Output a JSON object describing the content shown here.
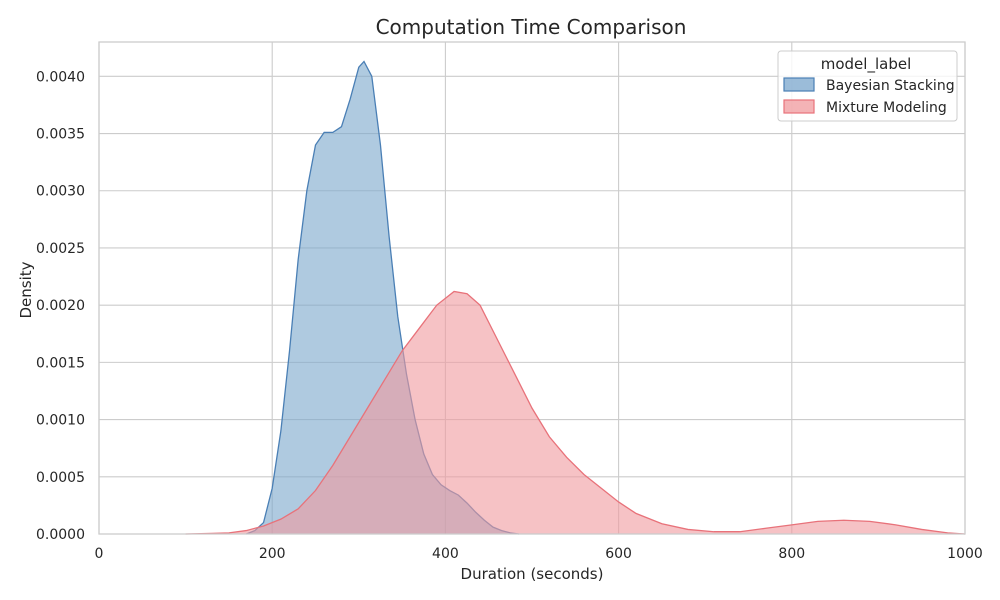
{
  "chart_data": {
    "type": "area",
    "title": "Computation Time Comparison",
    "xlabel": "Duration (seconds)",
    "ylabel": "Density",
    "xlim": [
      0,
      1000
    ],
    "ylim": [
      0,
      0.0043
    ],
    "x_ticks": [
      0,
      200,
      400,
      600,
      800,
      1000
    ],
    "x_tick_labels": [
      "0",
      "200",
      "400",
      "600",
      "800",
      "1000"
    ],
    "y_ticks": [
      0,
      0.0005,
      0.001,
      0.0015,
      0.002,
      0.0025,
      0.003,
      0.0035,
      0.004
    ],
    "y_tick_labels": [
      "0.0000",
      "0.0005",
      "0.0010",
      "0.0015",
      "0.0020",
      "0.0025",
      "0.0030",
      "0.0035",
      "0.0040"
    ],
    "grid": true,
    "legend": {
      "title": "model_label",
      "placement": "top-right"
    },
    "series": [
      {
        "name": "Bayesian Stacking",
        "color": "#4a7fb5",
        "fill": "#7aa6cc",
        "points": [
          [
            170,
            0.0
          ],
          [
            180,
            3e-05
          ],
          [
            190,
            0.0001
          ],
          [
            200,
            0.0004
          ],
          [
            210,
            0.0009
          ],
          [
            220,
            0.0016
          ],
          [
            230,
            0.0024
          ],
          [
            240,
            0.003
          ],
          [
            250,
            0.0034
          ],
          [
            260,
            0.00351
          ],
          [
            270,
            0.00351
          ],
          [
            280,
            0.00356
          ],
          [
            290,
            0.0038
          ],
          [
            300,
            0.00408
          ],
          [
            306,
            0.00413
          ],
          [
            315,
            0.004
          ],
          [
            325,
            0.0034
          ],
          [
            335,
            0.0026
          ],
          [
            345,
            0.0019
          ],
          [
            355,
            0.0014
          ],
          [
            365,
            0.001
          ],
          [
            375,
            0.0007
          ],
          [
            385,
            0.00052
          ],
          [
            395,
            0.00043
          ],
          [
            405,
            0.00038
          ],
          [
            415,
            0.00034
          ],
          [
            425,
            0.00027
          ],
          [
            435,
            0.00019
          ],
          [
            445,
            0.00012
          ],
          [
            455,
            6e-05
          ],
          [
            465,
            3e-05
          ],
          [
            475,
            1e-05
          ],
          [
            485,
            0.0
          ]
        ]
      },
      {
        "name": "Mixture Modeling",
        "color": "#e8727a",
        "fill": "#f09a9e",
        "points": [
          [
            100,
            0.0
          ],
          [
            130,
            5e-06
          ],
          [
            150,
            1e-05
          ],
          [
            170,
            3e-05
          ],
          [
            190,
            7e-05
          ],
          [
            210,
            0.00013
          ],
          [
            230,
            0.00022
          ],
          [
            250,
            0.00038
          ],
          [
            270,
            0.0006
          ],
          [
            290,
            0.00085
          ],
          [
            310,
            0.0011
          ],
          [
            330,
            0.00135
          ],
          [
            350,
            0.0016
          ],
          [
            370,
            0.0018
          ],
          [
            390,
            0.002
          ],
          [
            410,
            0.00212
          ],
          [
            425,
            0.0021
          ],
          [
            440,
            0.002
          ],
          [
            460,
            0.0017
          ],
          [
            480,
            0.0014
          ],
          [
            500,
            0.0011
          ],
          [
            520,
            0.00085
          ],
          [
            540,
            0.00067
          ],
          [
            560,
            0.00052
          ],
          [
            580,
            0.0004
          ],
          [
            600,
            0.00028
          ],
          [
            620,
            0.00018
          ],
          [
            650,
            9e-05
          ],
          [
            680,
            4e-05
          ],
          [
            710,
            2e-05
          ],
          [
            740,
            2e-05
          ],
          [
            770,
            5e-05
          ],
          [
            800,
            8e-05
          ],
          [
            830,
            0.00011
          ],
          [
            860,
            0.00012
          ],
          [
            890,
            0.00011
          ],
          [
            920,
            8e-05
          ],
          [
            950,
            4e-05
          ],
          [
            980,
            1e-05
          ],
          [
            1000,
            0.0
          ]
        ]
      }
    ]
  }
}
